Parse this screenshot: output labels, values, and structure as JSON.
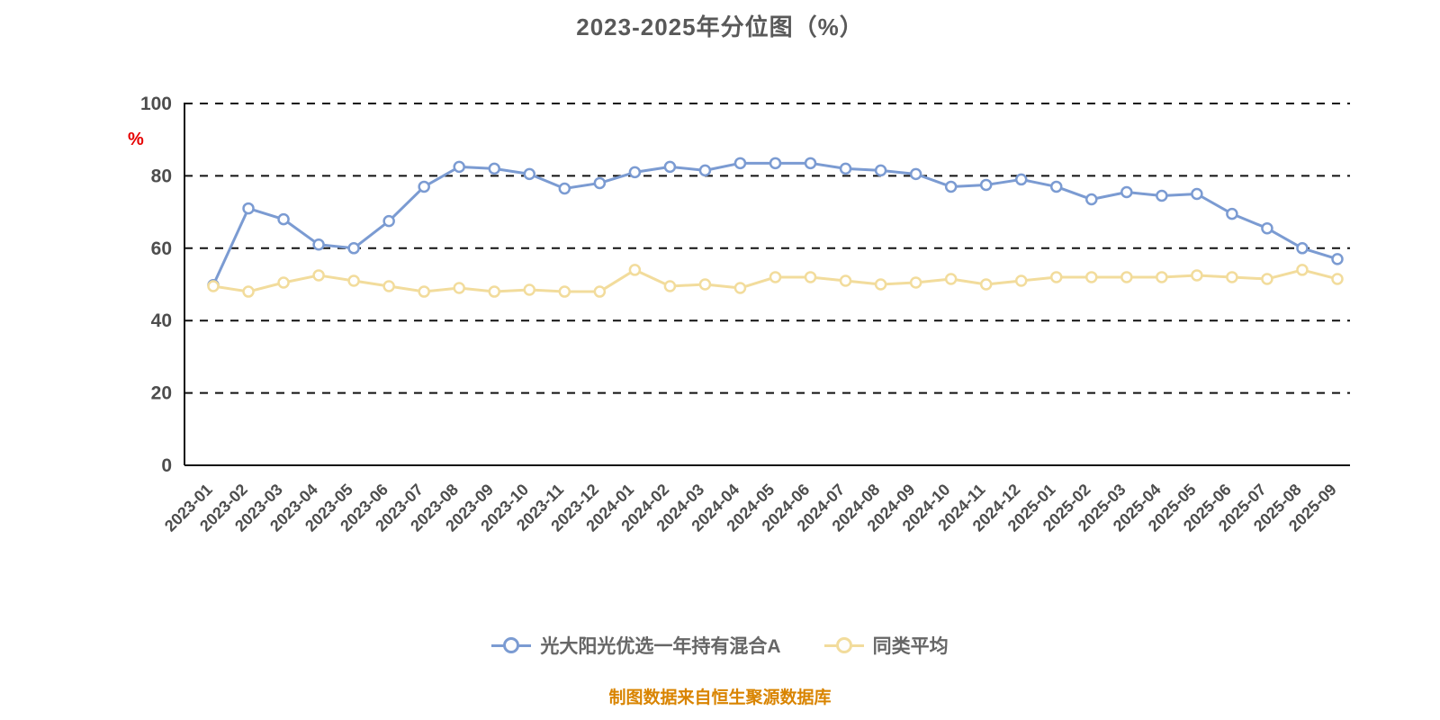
{
  "chart_data": {
    "type": "line",
    "title": "2023-2025年分位图（%）",
    "ylabel": "%",
    "ylim": [
      0,
      100
    ],
    "yticks": [
      0,
      20,
      40,
      60,
      80,
      100
    ],
    "grid": "horizontal-dashed",
    "legend_position": "bottom",
    "categories": [
      "2023-01",
      "2023-02",
      "2023-03",
      "2023-04",
      "2023-05",
      "2023-06",
      "2023-07",
      "2023-08",
      "2023-09",
      "2023-10",
      "2023-11",
      "2023-12",
      "2024-01",
      "2024-02",
      "2024-03",
      "2024-04",
      "2024-05",
      "2024-06",
      "2024-07",
      "2024-08",
      "2024-09",
      "2024-10",
      "2024-11",
      "2024-12",
      "2025-01",
      "2025-02",
      "2025-03",
      "2025-04",
      "2025-05",
      "2025-06",
      "2025-07",
      "2025-08",
      "2025-09"
    ],
    "series": [
      {
        "name": "光大阳光优选一年持有混合A",
        "color": "#7b9bd2",
        "values": [
          49.8,
          71,
          68,
          61,
          60,
          67.5,
          77,
          82.5,
          82,
          80.5,
          76.5,
          78,
          81,
          82.5,
          81.5,
          83.5,
          83.5,
          83.5,
          82,
          81.5,
          80.5,
          77,
          77.5,
          79,
          77,
          73.5,
          75.5,
          74.5,
          75,
          69.5,
          65.5,
          60,
          57
        ]
      },
      {
        "name": "同类平均",
        "color": "#f2dc9c",
        "values": [
          49.5,
          48,
          50.5,
          52.5,
          51,
          49.5,
          48,
          49,
          48,
          48.5,
          48,
          48,
          54,
          49.5,
          50,
          49,
          52,
          52,
          51,
          50,
          50.5,
          51.5,
          50,
          51,
          52,
          52,
          52,
          52,
          52.5,
          52,
          51.5,
          54,
          51.5
        ]
      }
    ],
    "source_note": "制图数据来自恒生聚源数据库"
  }
}
